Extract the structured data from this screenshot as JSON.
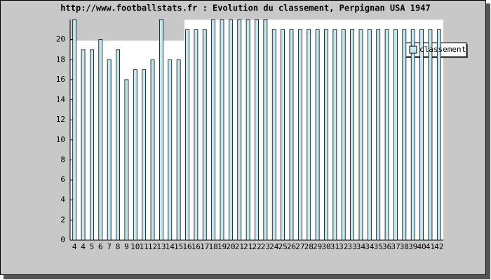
{
  "chart_data": {
    "type": "bar",
    "title": "http://www.footballstats.fr : Evolution du classement, Perpignan USA 1947",
    "categories": [
      "4",
      "4",
      "5",
      "6",
      "7",
      "8",
      "9",
      "10",
      "11",
      "12",
      "13",
      "14",
      "15",
      "16",
      "16",
      "17",
      "18",
      "19",
      "20",
      "21",
      "21",
      "22",
      "23",
      "24",
      "25",
      "26",
      "27",
      "28",
      "29",
      "30",
      "31",
      "32",
      "33",
      "34",
      "34",
      "35",
      "36",
      "37",
      "38",
      "39",
      "40",
      "41",
      "42"
    ],
    "series": [
      {
        "name": "classement",
        "color": "#c4e8f0",
        "values": [
          22,
          19,
          19,
          20,
          18,
          19,
          16,
          17,
          17,
          18,
          22,
          18,
          18,
          21,
          21,
          21,
          22,
          22,
          22,
          22,
          22,
          22,
          22,
          21,
          21,
          21,
          21,
          21,
          21,
          21,
          21,
          21,
          21,
          21,
          21,
          21,
          21,
          21,
          21,
          21,
          21,
          21,
          21
        ]
      }
    ],
    "ylim": [
      0,
      22
    ],
    "yticks": [
      0,
      2,
      4,
      6,
      8,
      10,
      12,
      14,
      16,
      18,
      20
    ],
    "legend": "top-right"
  }
}
